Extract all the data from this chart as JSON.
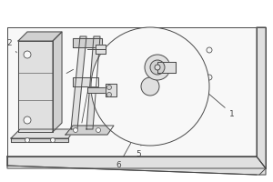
{
  "bg_color": "#ffffff",
  "line_color": "#4a4a4a",
  "fig_color": "#f7f7f7",
  "figsize": [
    3.0,
    2.0
  ],
  "dpi": 100
}
